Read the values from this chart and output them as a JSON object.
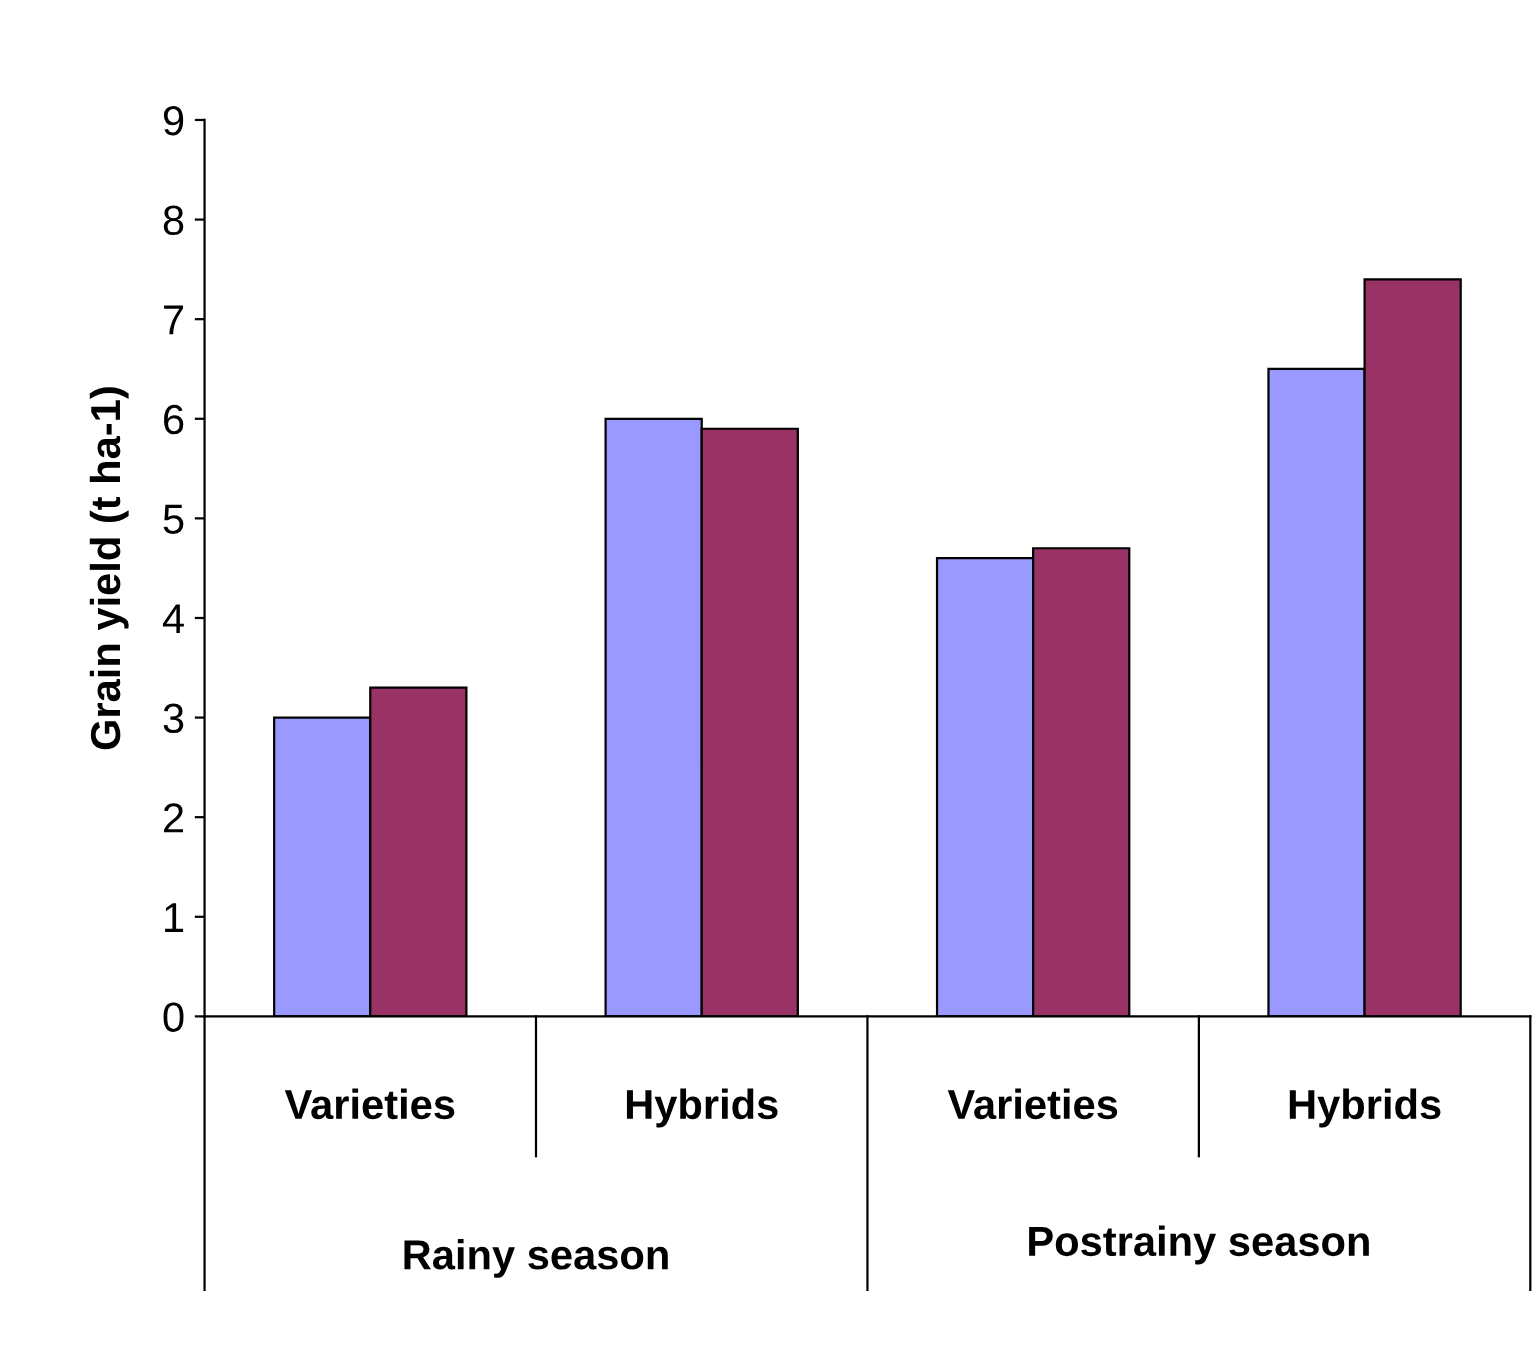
{
  "chart_data": {
    "type": "bar",
    "ylabel": "Grain yield (t ha-1)",
    "categories": [
      "Varieties",
      "Hybrids",
      "Varieties",
      "Hybrids"
    ],
    "series": [
      {
        "color": "#9999ff",
        "values": [
          3.0,
          6.0,
          4.6,
          6.5
        ]
      },
      {
        "color": "#993366",
        "values": [
          3.3,
          5.9,
          4.7,
          7.4
        ]
      }
    ],
    "ylim": [
      0,
      9
    ],
    "yticks": [
      0,
      1,
      2,
      3,
      4,
      5,
      6,
      7,
      8,
      9
    ],
    "grid": false,
    "legend": false,
    "annotations": [
      "Rainy season",
      "Postrainy season"
    ]
  }
}
